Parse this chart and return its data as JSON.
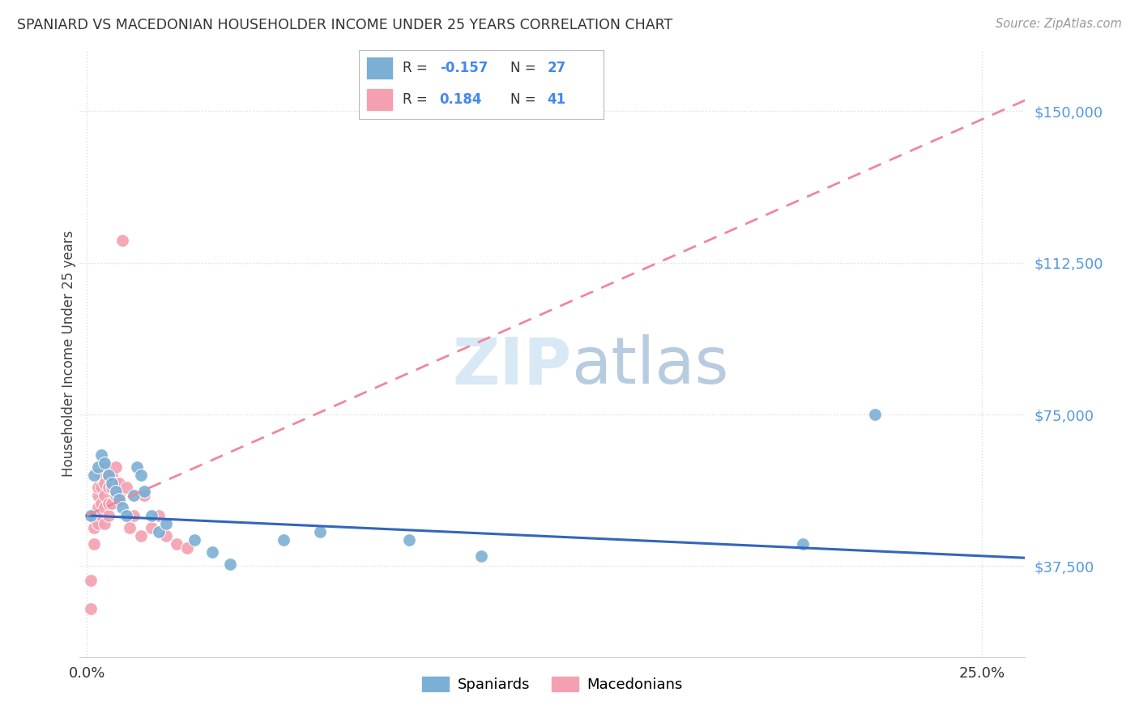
{
  "title": "SPANIARD VS MACEDONIAN HOUSEHOLDER INCOME UNDER 25 YEARS CORRELATION CHART",
  "source": "Source: ZipAtlas.com",
  "ylabel": "Householder Income Under 25 years",
  "ytick_labels": [
    "$37,500",
    "$75,000",
    "$112,500",
    "$150,000"
  ],
  "ytick_values": [
    37500,
    75000,
    112500,
    150000
  ],
  "ylim": [
    15000,
    165000
  ],
  "xlim": [
    -0.002,
    0.262
  ],
  "legend_blue_r": "-0.157",
  "legend_blue_n": "27",
  "legend_pink_r": "0.184",
  "legend_pink_n": "41",
  "blue_color": "#7BAFD4",
  "pink_color": "#F4A0B0",
  "trend_blue_color": "#3366BB",
  "trend_pink_color": "#EE8899",
  "watermark_color": "#D8E8F5",
  "background_color": "#FFFFFF",
  "grid_color": "#DDDDDD",
  "spaniards_x": [
    0.001,
    0.002,
    0.003,
    0.004,
    0.005,
    0.006,
    0.007,
    0.008,
    0.009,
    0.01,
    0.011,
    0.013,
    0.014,
    0.015,
    0.016,
    0.018,
    0.02,
    0.022,
    0.03,
    0.035,
    0.04,
    0.055,
    0.065,
    0.09,
    0.11,
    0.2,
    0.22
  ],
  "spaniards_y": [
    50000,
    60000,
    62000,
    65000,
    63000,
    60000,
    58000,
    56000,
    54000,
    52000,
    50000,
    55000,
    62000,
    60000,
    56000,
    50000,
    46000,
    48000,
    44000,
    41000,
    38000,
    44000,
    46000,
    44000,
    40000,
    43000,
    75000
  ],
  "macedonians_x": [
    0.001,
    0.001,
    0.002,
    0.002,
    0.002,
    0.003,
    0.003,
    0.003,
    0.003,
    0.004,
    0.004,
    0.004,
    0.004,
    0.005,
    0.005,
    0.005,
    0.005,
    0.005,
    0.006,
    0.006,
    0.006,
    0.006,
    0.007,
    0.007,
    0.007,
    0.008,
    0.008,
    0.008,
    0.009,
    0.009,
    0.01,
    0.011,
    0.012,
    0.013,
    0.015,
    0.016,
    0.018,
    0.02,
    0.022,
    0.025,
    0.028
  ],
  "macedonians_y": [
    27000,
    34000,
    43000,
    47000,
    50000,
    48000,
    52000,
    55000,
    57000,
    50000,
    53000,
    57000,
    60000,
    48000,
    52000,
    55000,
    58000,
    62000,
    50000,
    53000,
    57000,
    60000,
    53000,
    57000,
    60000,
    55000,
    58000,
    62000,
    55000,
    58000,
    118000,
    57000,
    47000,
    50000,
    45000,
    55000,
    47000,
    50000,
    45000,
    43000,
    42000
  ]
}
